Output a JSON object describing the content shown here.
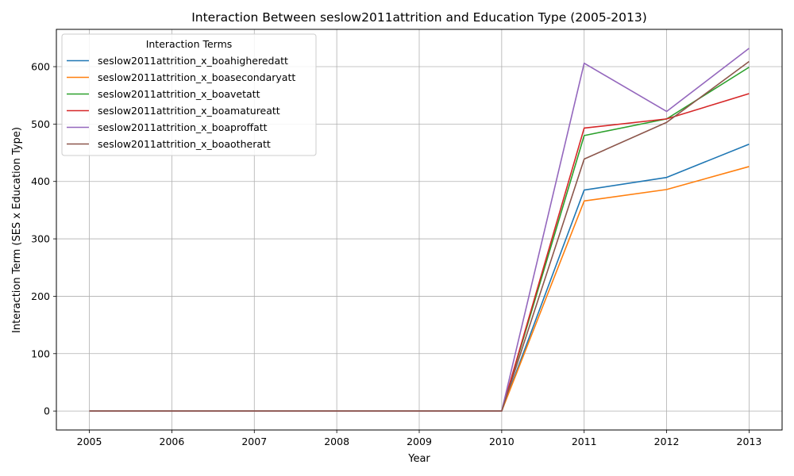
{
  "chart_data": {
    "type": "line",
    "title": "Interaction Between seslow2011attrition and Education Type (2005-2013)",
    "xlabel": "Year",
    "ylabel": "Interaction Term (SES x Education Type)",
    "x": [
      2005,
      2006,
      2007,
      2008,
      2009,
      2010,
      2011,
      2012,
      2013
    ],
    "xlim": [
      2004.6,
      2013.4
    ],
    "ylim": [
      -33,
      665
    ],
    "yticks": [
      0,
      100,
      200,
      300,
      400,
      500,
      600
    ],
    "grid": true,
    "legend": {
      "title": "Interaction Terms",
      "placement": "upper-left"
    },
    "series": [
      {
        "name": "seslow2011attrition_x_boahigheredatt",
        "color": "#1f77b4",
        "values": [
          0,
          0,
          0,
          0,
          0,
          0,
          385,
          407,
          465
        ]
      },
      {
        "name": "seslow2011attrition_x_boasecondaryatt",
        "color": "#ff7f0e",
        "values": [
          0,
          0,
          0,
          0,
          0,
          0,
          366,
          386,
          426
        ]
      },
      {
        "name": "seslow2011attrition_x_boavetatt",
        "color": "#2ca02c",
        "values": [
          0,
          0,
          0,
          0,
          0,
          0,
          480,
          509,
          599
        ]
      },
      {
        "name": "seslow2011attrition_x_boamatureatt",
        "color": "#d62728",
        "values": [
          0,
          0,
          0,
          0,
          0,
          0,
          493,
          509,
          553
        ]
      },
      {
        "name": "seslow2011attrition_x_boaproffatt",
        "color": "#9467bd",
        "values": [
          0,
          0,
          0,
          0,
          0,
          0,
          606,
          522,
          632
        ]
      },
      {
        "name": "seslow2011attrition_x_boaotheratt",
        "color": "#8c564b",
        "values": [
          0,
          0,
          0,
          0,
          0,
          0,
          439,
          503,
          609
        ]
      }
    ]
  }
}
